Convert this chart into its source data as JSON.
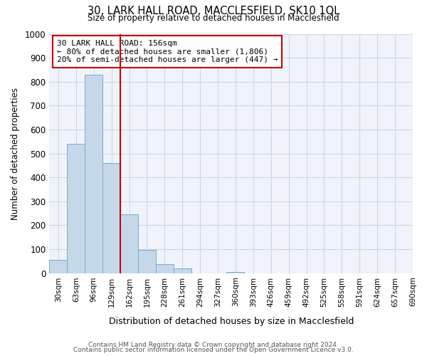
{
  "title1": "30, LARK HALL ROAD, MACCLESFIELD, SK10 1QL",
  "title2": "Size of property relative to detached houses in Macclesfield",
  "xlabel": "Distribution of detached houses by size in Macclesfield",
  "ylabel": "Number of detached properties",
  "bin_labels": [
    "30sqm",
    "63sqm",
    "96sqm",
    "129sqm",
    "162sqm",
    "195sqm",
    "228sqm",
    "261sqm",
    "294sqm",
    "327sqm",
    "360sqm",
    "393sqm",
    "426sqm",
    "459sqm",
    "492sqm",
    "525sqm",
    "558sqm",
    "591sqm",
    "624sqm",
    "657sqm",
    "690sqm"
  ],
  "bar_heights": [
    55,
    540,
    830,
    460,
    245,
    97,
    38,
    20,
    0,
    0,
    5,
    0,
    0,
    0,
    0,
    0,
    0,
    0,
    0,
    0
  ],
  "bar_color": "#c5d8ea",
  "bar_edge_color": "#7aaac8",
  "vline_x": 3.5,
  "vline_color": "#cc0000",
  "annotation_text": "30 LARK HALL ROAD: 156sqm\n← 80% of detached houses are smaller (1,806)\n20% of semi-detached houses are larger (447) →",
  "annotation_box_color": "#ffffff",
  "annotation_box_edge": "#cc0000",
  "ylim": [
    0,
    1000
  ],
  "yticks": [
    0,
    100,
    200,
    300,
    400,
    500,
    600,
    700,
    800,
    900,
    1000
  ],
  "footer1": "Contains HM Land Registry data © Crown copyright and database right 2024.",
  "footer2": "Contains public sector information licensed under the Open Government Licence v3.0.",
  "bg_color": "#f0f4fa",
  "grid_color": "#c8d8e8",
  "fig_bg_color": "#ffffff"
}
